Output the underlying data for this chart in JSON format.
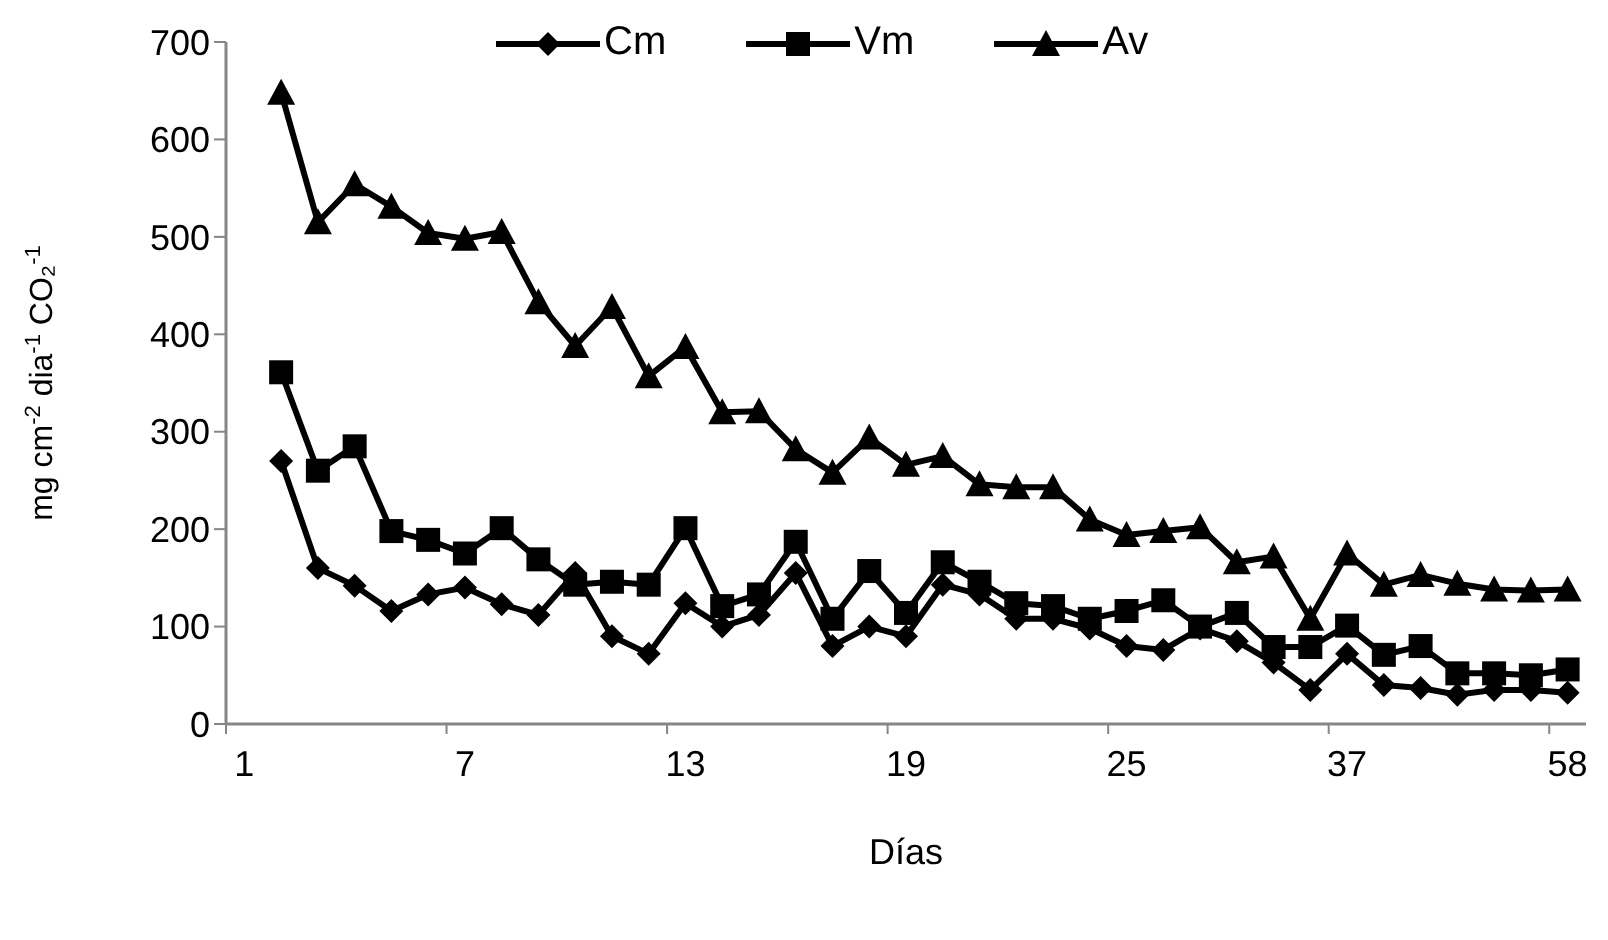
{
  "chart_data": {
    "type": "line",
    "xlabel": "Días",
    "ylabel": "mg cm$^{-2}$ dia$^{-1}$ CO₂$^{-1}$",
    "categories": [
      "1",
      null,
      null,
      null,
      null,
      null,
      "7",
      null,
      null,
      null,
      null,
      null,
      "13",
      null,
      null,
      null,
      null,
      null,
      "19",
      null,
      null,
      null,
      null,
      null,
      "25",
      null,
      null,
      null,
      null,
      null,
      "37",
      null,
      null,
      null,
      null,
      null,
      "58"
    ],
    "series": [
      {
        "name": "Cm",
        "color": "#000000",
        "marker": "diamond",
        "values": [
          null,
          270,
          160,
          142,
          116,
          133,
          140,
          123,
          112,
          155,
          90,
          72,
          124,
          100,
          112,
          155,
          80,
          100,
          90,
          143,
          133,
          108,
          108,
          98,
          80,
          76,
          98,
          85,
          63,
          35,
          72,
          40,
          37,
          30,
          35,
          35,
          32
        ]
      },
      {
        "name": "Vm",
        "color": "#000000",
        "marker": "square",
        "values": [
          null,
          361,
          260,
          285,
          198,
          189,
          175,
          201,
          169,
          143,
          146,
          143,
          201,
          121,
          133,
          187,
          108,
          157,
          114,
          166,
          146,
          124,
          121,
          108,
          116,
          127,
          100,
          114,
          79,
          79,
          101,
          71,
          80,
          52,
          52,
          50,
          56
        ]
      },
      {
        "name": "Av",
        "color": "#000000",
        "marker": "triangle",
        "values": [
          null,
          648,
          515,
          554,
          531,
          504,
          498,
          505,
          433,
          388,
          428,
          357,
          387,
          320,
          321,
          282,
          258,
          294,
          266,
          275,
          246,
          243,
          243,
          210,
          194,
          198,
          202,
          166,
          172,
          108,
          175,
          143,
          153,
          144,
          138,
          137,
          138
        ]
      }
    ],
    "ylim": [
      0,
      700
    ],
    "yticks": [
      0,
      100,
      200,
      300,
      400,
      500,
      600,
      700
    ],
    "grid": false,
    "legend": "top",
    "line_style": "solid"
  }
}
